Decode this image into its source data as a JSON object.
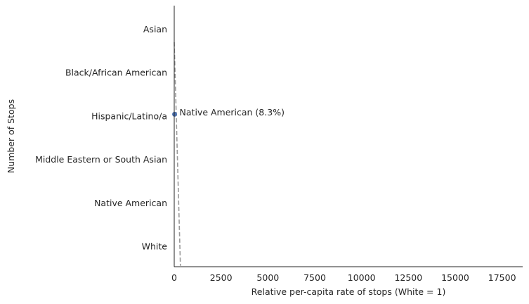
{
  "chart_data": {
    "type": "scatter",
    "xlabel": "Relative per-capita rate of stops (White = 1)",
    "ylabel": "Number of Stops",
    "categories": [
      "Asian",
      "Black/African American",
      "Hispanic/Latino/a",
      "Middle Eastern or South Asian",
      "Native American",
      "White"
    ],
    "x_ticks": [
      0,
      2500,
      5000,
      7500,
      10000,
      12500,
      15000,
      17500
    ],
    "x_tick_labels": [
      "0",
      "2500",
      "5000",
      "7500",
      "10000",
      "12500",
      "15000",
      "17500"
    ],
    "xlim": [
      0,
      18600
    ],
    "points": [
      {
        "x": 20,
        "category": "Hispanic/Latino/a",
        "label": "Native American (8.3%)"
      }
    ],
    "reference_line": {
      "style": "dashed",
      "color": "#999999",
      "from": {
        "x": 0,
        "category_position": 0.3
      },
      "to": {
        "x": 330,
        "category_position": 5.45
      }
    },
    "point_color": "#4c72b0",
    "grid": false,
    "legend": "none"
  }
}
